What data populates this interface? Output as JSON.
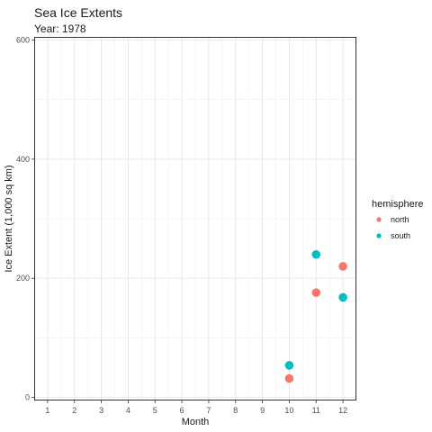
{
  "chart_data": {
    "type": "scatter",
    "title": "Sea Ice Extents",
    "subtitle": "Year: 1978",
    "xlabel": "Month",
    "ylabel": "Ice Extent (1,000 sq km)",
    "x_ticks": [
      "1",
      "2",
      "3",
      "4",
      "5",
      "6",
      "7",
      "8",
      "9",
      "10",
      "11",
      "12"
    ],
    "y_ticks": [
      "0",
      "200",
      "400",
      "600"
    ],
    "xlim": [
      0.5,
      12.5
    ],
    "ylim": [
      -5,
      605
    ],
    "grid": true,
    "legend": {
      "title": "hemisphere",
      "placement": "right"
    },
    "series": [
      {
        "name": "north",
        "color": "#F8766D",
        "points": [
          {
            "x": 10,
            "y": 32
          },
          {
            "x": 11,
            "y": 176
          },
          {
            "x": 12,
            "y": 220
          }
        ]
      },
      {
        "name": "south",
        "color": "#00BFC4",
        "points": [
          {
            "x": 10,
            "y": 54
          },
          {
            "x": 11,
            "y": 240
          },
          {
            "x": 12,
            "y": 168
          }
        ]
      }
    ]
  }
}
